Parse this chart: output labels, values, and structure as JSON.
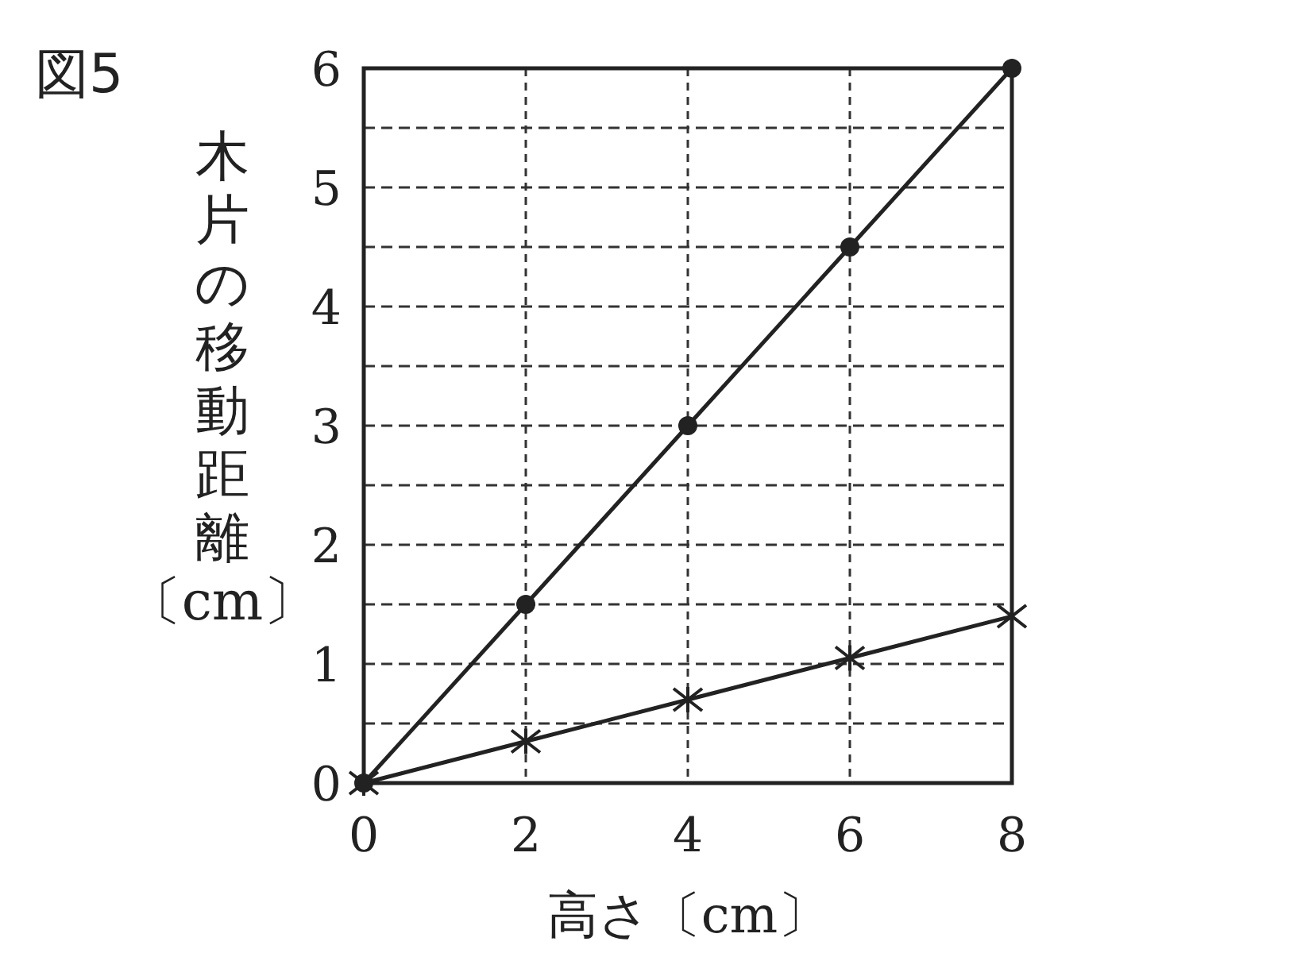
{
  "chart_data": {
    "type": "line",
    "title": "図5",
    "xlabel": "高さ〔cm〕",
    "ylabel": "木片の移動距離〔cm〕",
    "x": [
      0,
      2,
      4,
      6,
      8
    ],
    "series": [
      {
        "color": "#222222",
        "marker": "circle",
        "values": [
          0,
          1.5,
          3,
          4.5,
          6
        ]
      },
      {
        "color": "#222222",
        "marker": "cross",
        "values": [
          0,
          0.35,
          0.7,
          1.05,
          1.4
        ]
      }
    ],
    "xlim": [
      0,
      8
    ],
    "ylim": [
      0,
      6
    ],
    "xticks": [
      0,
      2,
      4,
      6,
      8
    ],
    "yticks": [
      0,
      {
        "value": 0.5,
        "label": null
      },
      1,
      {
        "value": 1.5,
        "label": null
      },
      2,
      {
        "value": 2.5,
        "label": null
      },
      3,
      {
        "value": 3.5,
        "label": null
      },
      4,
      {
        "value": 4.5,
        "label": null
      },
      5,
      {
        "value": 5.5,
        "label": null
      },
      6
    ],
    "grid": true,
    "line_style": "solid"
  }
}
